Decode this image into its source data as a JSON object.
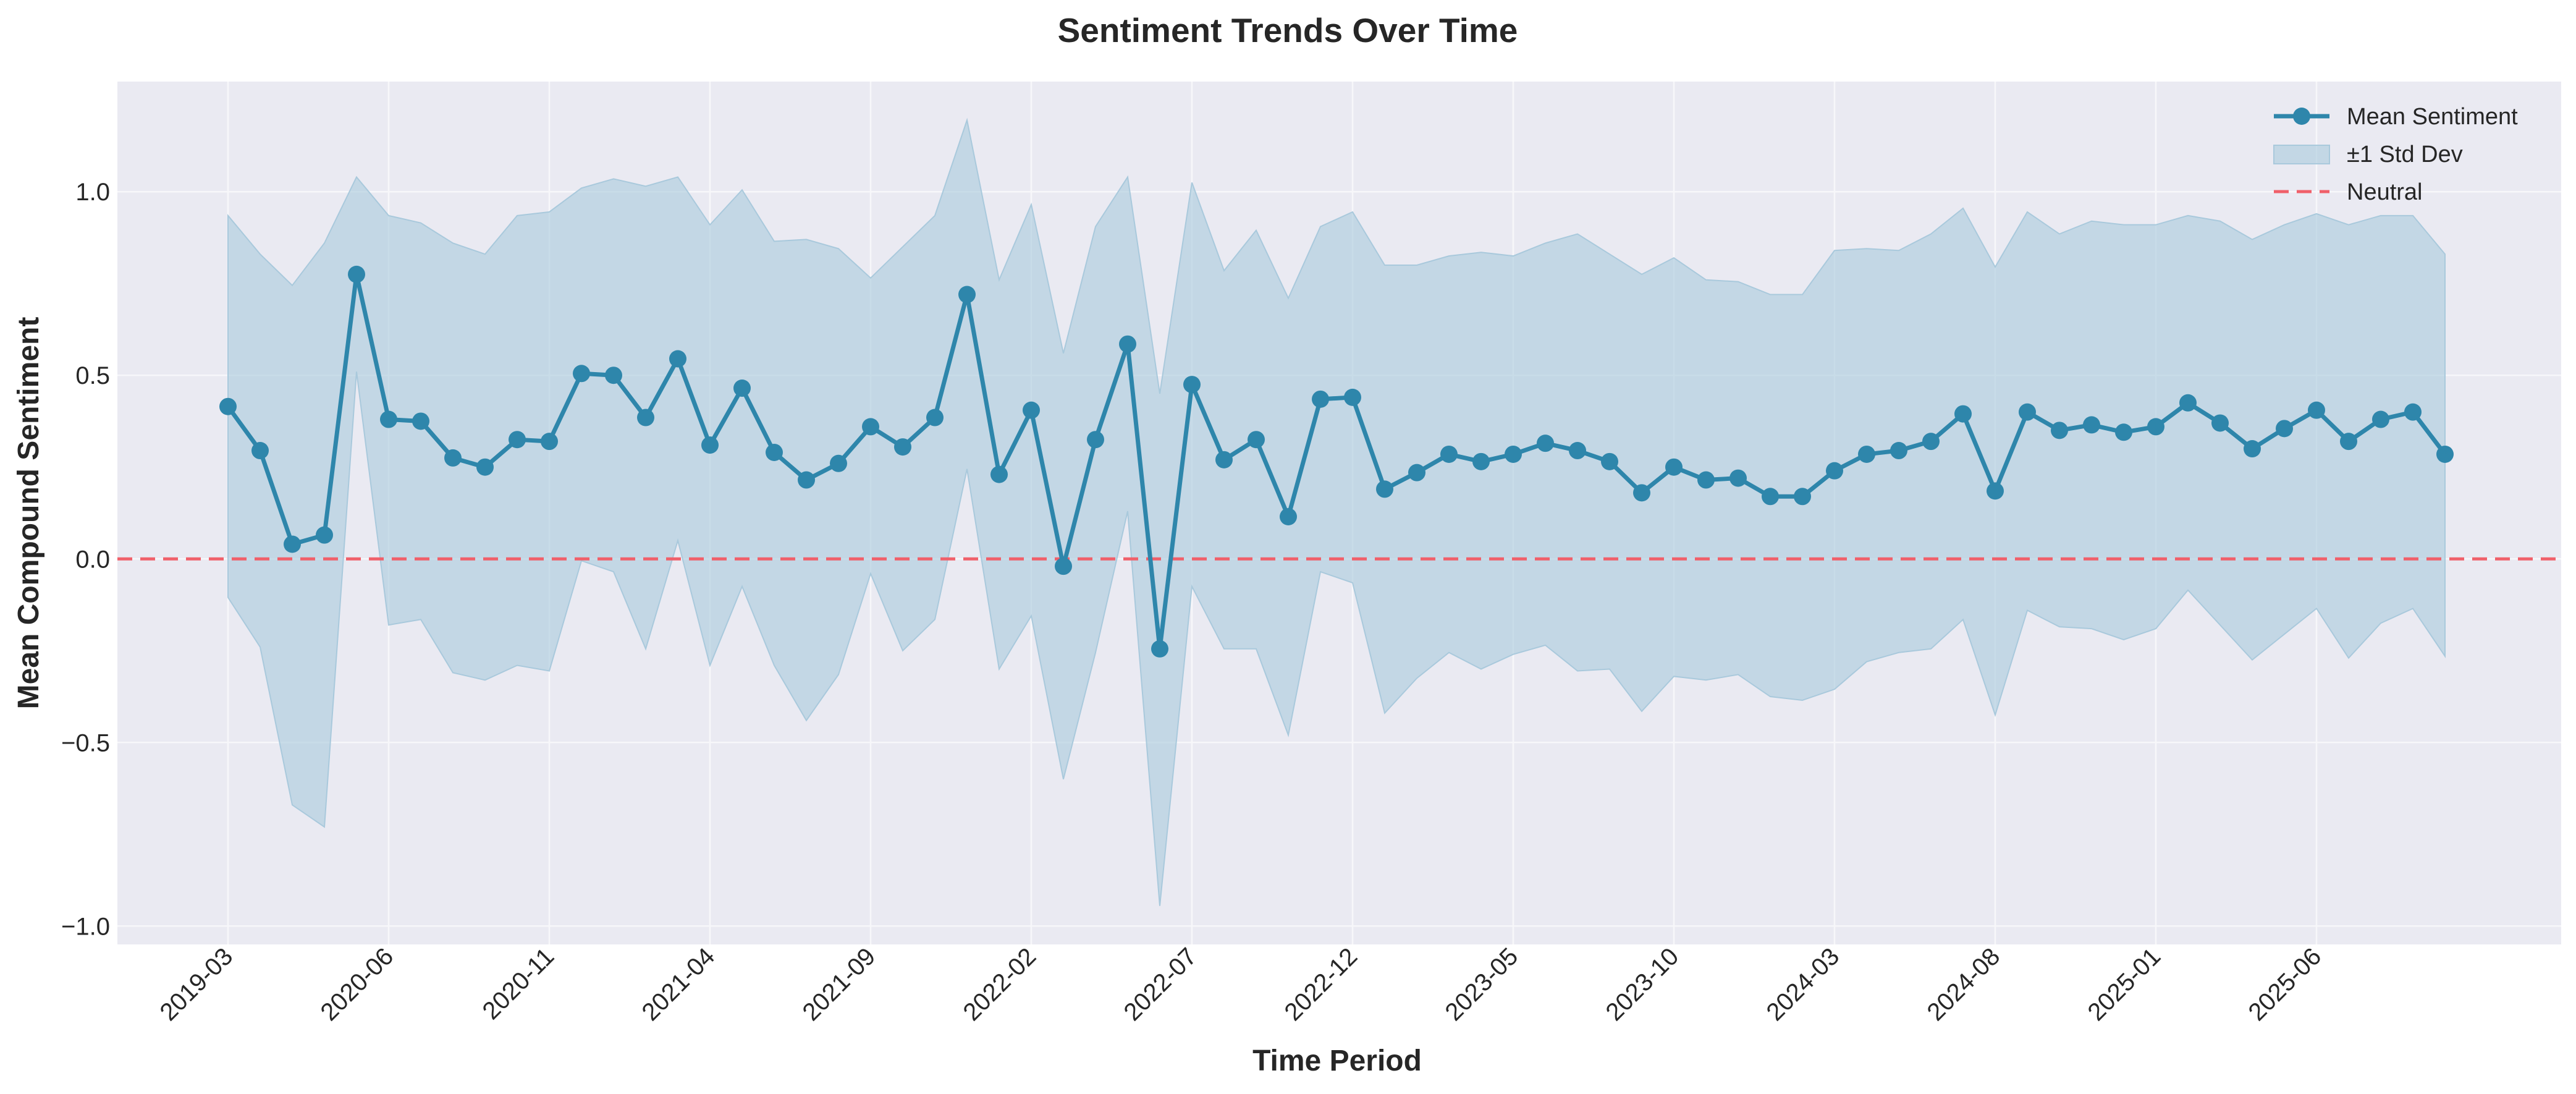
{
  "chart_data": {
    "type": "line",
    "title": "Sentiment Trends Over Time",
    "xlabel": "Time Period",
    "ylabel": "Mean Compound Sentiment",
    "ylim": [
      -1.05,
      1.3
    ],
    "yticks": [
      -1.0,
      -0.5,
      0.0,
      0.5,
      1.0
    ],
    "ytick_labels": [
      "−1.0",
      "−0.5",
      "0.0",
      "0.5",
      "1.0"
    ],
    "grid": true,
    "legend_position": "top-right",
    "colors": {
      "line": "#2e86ab",
      "band": "#a9c9dc",
      "neutral": "#f0606a",
      "plot_bg": "#eaeaf2",
      "grid": "#f7f7fa"
    },
    "x_tick_labels": [
      {
        "index": 0,
        "label": "2019-03"
      },
      {
        "index": 5,
        "label": "2020-06"
      },
      {
        "index": 10,
        "label": "2020-11"
      },
      {
        "index": 15,
        "label": "2021-04"
      },
      {
        "index": 20,
        "label": "2021-09"
      },
      {
        "index": 25,
        "label": "2022-02"
      },
      {
        "index": 30,
        "label": "2022-07"
      },
      {
        "index": 35,
        "label": "2022-12"
      },
      {
        "index": 40,
        "label": "2023-05"
      },
      {
        "index": 45,
        "label": "2023-10"
      },
      {
        "index": 50,
        "label": "2024-03"
      },
      {
        "index": 55,
        "label": "2024-08"
      },
      {
        "index": 60,
        "label": "2025-01"
      },
      {
        "index": 65,
        "label": "2025-06"
      }
    ],
    "series": [
      {
        "name": "Mean Sentiment",
        "values": [
          0.415,
          0.295,
          0.04,
          0.065,
          0.775,
          0.38,
          0.375,
          0.275,
          0.25,
          0.325,
          0.32,
          0.505,
          0.5,
          0.385,
          0.545,
          0.31,
          0.465,
          0.29,
          0.215,
          0.26,
          0.36,
          0.305,
          0.385,
          0.72,
          0.23,
          0.405,
          -0.02,
          0.325,
          0.585,
          -0.245,
          0.475,
          0.27,
          0.325,
          0.115,
          0.435,
          0.44,
          0.19,
          0.235,
          0.285,
          0.265,
          0.285,
          0.315,
          0.295,
          0.265,
          0.18,
          0.25,
          0.215,
          0.22,
          0.17,
          0.17,
          0.24,
          0.285,
          0.295,
          0.32,
          0.395,
          0.185,
          0.4,
          0.35,
          0.365,
          0.345,
          0.36,
          0.425,
          0.37,
          0.3,
          0.355,
          0.405,
          0.32,
          0.38,
          0.4,
          0.285
        ]
      },
      {
        "name": "±1 Std Dev",
        "upper": [
          0.935,
          0.83,
          0.745,
          0.86,
          1.04,
          0.935,
          0.915,
          0.86,
          0.83,
          0.935,
          0.945,
          1.01,
          1.035,
          1.015,
          1.04,
          0.91,
          1.005,
          0.865,
          0.87,
          0.845,
          0.765,
          0.85,
          0.935,
          1.195,
          0.76,
          0.965,
          0.56,
          0.905,
          1.04,
          0.45,
          1.025,
          0.785,
          0.895,
          0.71,
          0.905,
          0.945,
          0.8,
          0.8,
          0.825,
          0.835,
          0.825,
          0.86,
          0.885,
          0.83,
          0.775,
          0.82,
          0.76,
          0.755,
          0.72,
          0.72,
          0.84,
          0.845,
          0.84,
          0.885,
          0.955,
          0.795,
          0.945,
          0.885,
          0.92,
          0.91,
          0.91,
          0.935,
          0.92,
          0.87,
          0.91,
          0.94,
          0.91,
          0.935,
          0.935,
          0.83
        ],
        "lower": [
          -0.105,
          -0.24,
          -0.67,
          -0.73,
          0.51,
          -0.18,
          -0.165,
          -0.31,
          -0.33,
          -0.29,
          -0.305,
          -0.005,
          -0.035,
          -0.245,
          0.05,
          -0.29,
          -0.075,
          -0.29,
          -0.44,
          -0.315,
          -0.04,
          -0.25,
          -0.165,
          0.245,
          -0.3,
          -0.155,
          -0.6,
          -0.255,
          0.13,
          -0.945,
          -0.075,
          -0.245,
          -0.245,
          -0.48,
          -0.035,
          -0.065,
          -0.42,
          -0.325,
          -0.255,
          -0.3,
          -0.26,
          -0.235,
          -0.305,
          -0.3,
          -0.415,
          -0.32,
          -0.33,
          -0.315,
          -0.375,
          -0.385,
          -0.355,
          -0.28,
          -0.255,
          -0.245,
          -0.165,
          -0.425,
          -0.14,
          -0.185,
          -0.19,
          -0.22,
          -0.19,
          -0.085,
          -0.18,
          -0.275,
          -0.205,
          -0.135,
          -0.27,
          -0.175,
          -0.135,
          -0.265
        ]
      },
      {
        "name": "Neutral",
        "value": 0.0
      }
    ]
  }
}
